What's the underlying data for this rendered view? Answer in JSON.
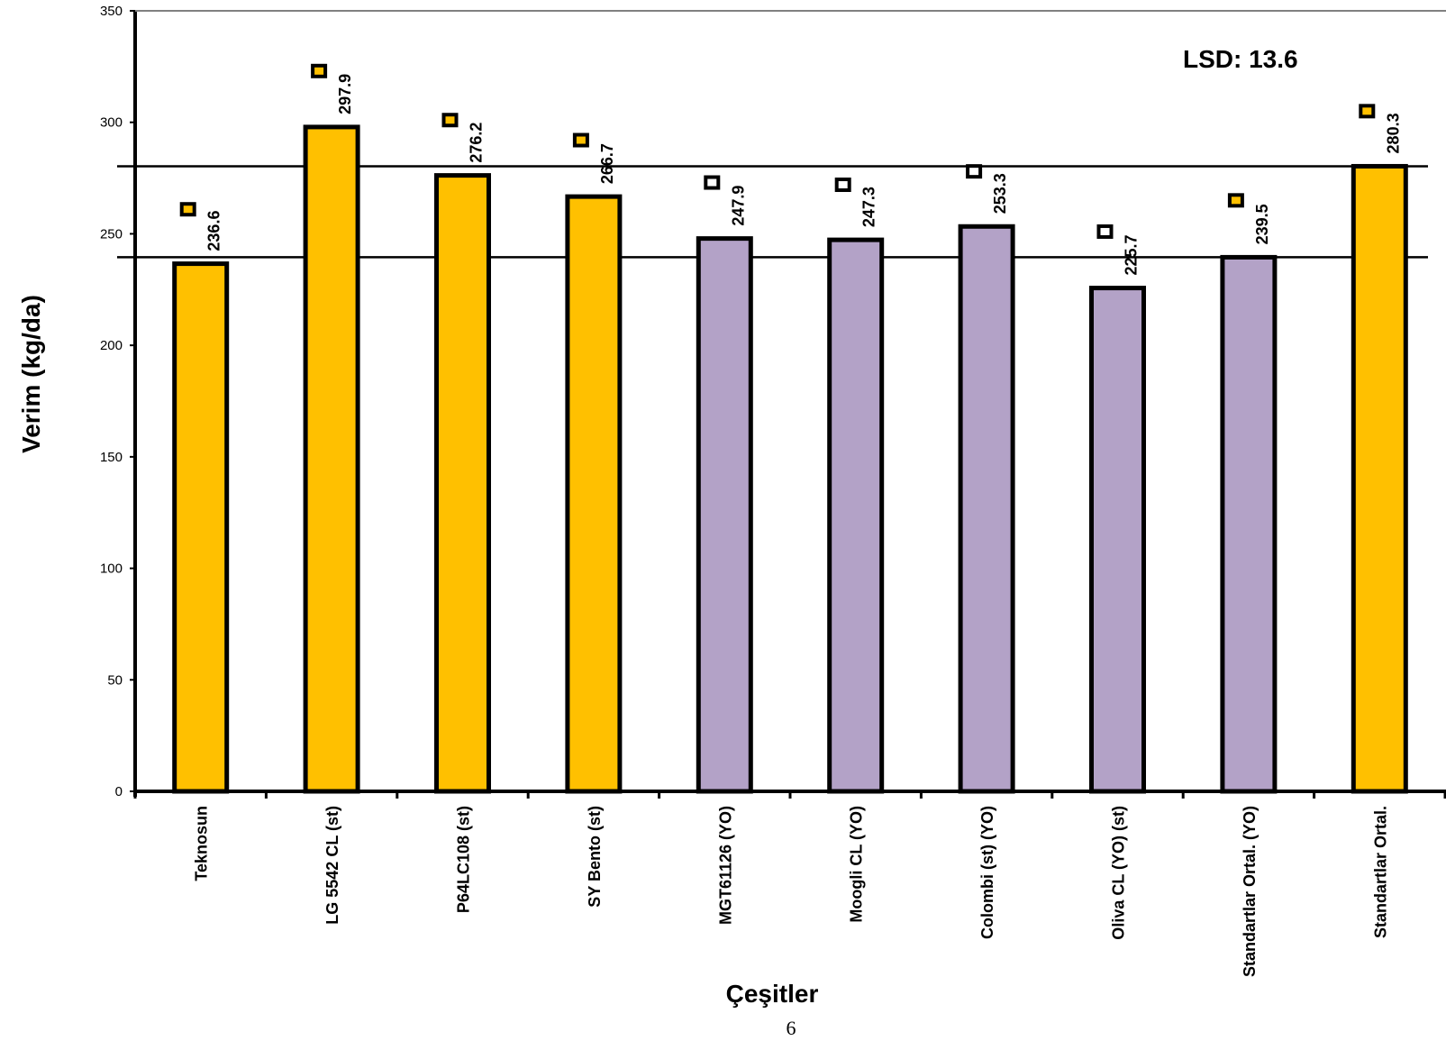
{
  "chart_data": {
    "type": "bar",
    "categories": [
      "Teknosun",
      "LG 5542 CL (st)",
      "P64LC108 (st)",
      "SY Bento (st)",
      "MGT61126 (YO)",
      "Moogli CL (YO)",
      "Colombi (st) (YO)",
      "Oliva CL (YO) (st)",
      "Standartlar Ortal. (YO)",
      "Standartlar Ortal."
    ],
    "values": [
      236.6,
      297.9,
      276.2,
      266.7,
      247.9,
      247.3,
      253.3,
      225.7,
      239.5,
      280.3
    ],
    "value_labels": [
      "236.6",
      "297.9",
      "276.2",
      "266.7",
      "247.9",
      "247.3",
      "253.3",
      "225.7",
      "239.5",
      "280.3"
    ],
    "bar_colors": [
      "#FFC000",
      "#FFC000",
      "#FFC000",
      "#FFC000",
      "#B3A2C7",
      "#B3A2C7",
      "#B3A2C7",
      "#B3A2C7",
      "#B3A2C7",
      "#FFC000"
    ],
    "marker_colors": [
      "#FFC000",
      "#FFC000",
      "#FFC000",
      "#FFC000",
      "#FFFFFF",
      "#FFFFFF",
      "#FFFFFF",
      "#FFFFFF",
      "#FFC000",
      "#FFC000"
    ],
    "marker_values": [
      261,
      323,
      301,
      292,
      273,
      272,
      278,
      251,
      265,
      305
    ],
    "reference_lines": [
      280.3,
      239.5
    ],
    "xlabel": "Çeşitler",
    "ylabel": "Verim (kg/da)",
    "ylim": [
      0,
      350
    ],
    "yticks": [
      0,
      50,
      100,
      150,
      200,
      250,
      300,
      350
    ],
    "grid": false,
    "annotation": "LSD: 13.6"
  },
  "page_number": "6"
}
